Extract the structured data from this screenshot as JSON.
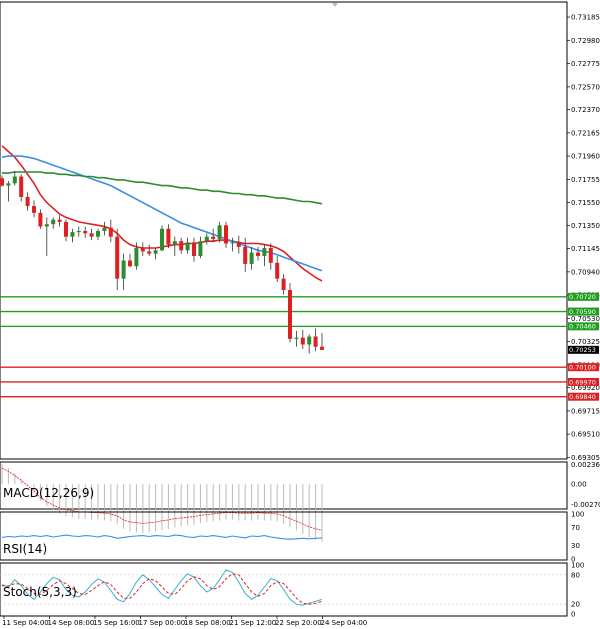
{
  "chart_data": {
    "type": "candlestick",
    "instrument_note": "",
    "price_axis": {
      "min": 0.693,
      "max": 0.733,
      "ticks": [
        "0.73185",
        "0.72980",
        "0.72775",
        "0.72570",
        "0.72370",
        "0.72165",
        "0.71960",
        "0.71755",
        "0.71550",
        "0.71350",
        "0.71145",
        "0.70940",
        "0.70735",
        "0.70530",
        "0.70325",
        "0.70120",
        "0.69920",
        "0.69715",
        "0.69510",
        "0.69305"
      ]
    },
    "time_axis": {
      "labels": [
        "11 Sep 04:00",
        "14 Sep 08:00",
        "15 Sep 16:00",
        "17 Sep 00:00",
        "18 Sep 08:00",
        "21 Sep 12:00",
        "22 Sep 20:00",
        "24 Sep 04:00"
      ]
    },
    "candles": [
      [
        0.71765,
        0.7179,
        0.7169,
        0.717
      ],
      [
        0.717,
        0.7174,
        0.7156,
        0.7172
      ],
      [
        0.7172,
        0.7183,
        0.717,
        0.7178
      ],
      [
        0.7178,
        0.718,
        0.7156,
        0.716
      ],
      [
        0.716,
        0.7164,
        0.7148,
        0.7152
      ],
      [
        0.7152,
        0.7157,
        0.7142,
        0.7146
      ],
      [
        0.7146,
        0.7149,
        0.7132,
        0.7134
      ],
      [
        0.7134,
        0.7142,
        0.7108,
        0.7136
      ],
      [
        0.7136,
        0.7142,
        0.7132,
        0.714
      ],
      [
        0.714,
        0.7144,
        0.7134,
        0.7138
      ],
      [
        0.7138,
        0.714,
        0.7121,
        0.7125
      ],
      [
        0.7125,
        0.7132,
        0.712,
        0.7129
      ],
      [
        0.7129,
        0.7134,
        0.7125,
        0.713
      ],
      [
        0.713,
        0.7134,
        0.7124,
        0.7128
      ],
      [
        0.7128,
        0.7132,
        0.7122,
        0.7125
      ],
      [
        0.7125,
        0.7132,
        0.7122,
        0.713
      ],
      [
        0.713,
        0.7138,
        0.7126,
        0.7133
      ],
      [
        0.7133,
        0.714,
        0.712,
        0.7125
      ],
      [
        0.7125,
        0.7132,
        0.7078,
        0.7088
      ],
      [
        0.7088,
        0.711,
        0.7078,
        0.7104
      ],
      [
        0.7104,
        0.711,
        0.7098,
        0.7099
      ],
      [
        0.7099,
        0.712,
        0.7096,
        0.7115
      ],
      [
        0.7115,
        0.712,
        0.7108,
        0.7112
      ],
      [
        0.7112,
        0.7118,
        0.7108,
        0.711
      ],
      [
        0.711,
        0.7115,
        0.7105,
        0.7113
      ],
      [
        0.7113,
        0.7135,
        0.7112,
        0.7132
      ],
      [
        0.7132,
        0.7136,
        0.7115,
        0.7118
      ],
      [
        0.7118,
        0.7125,
        0.7108,
        0.7121
      ],
      [
        0.7121,
        0.7124,
        0.711,
        0.7113
      ],
      [
        0.7113,
        0.7124,
        0.711,
        0.712
      ],
      [
        0.712,
        0.7124,
        0.7103,
        0.7108
      ],
      [
        0.7108,
        0.7125,
        0.7106,
        0.7121
      ],
      [
        0.7121,
        0.7128,
        0.7118,
        0.7125
      ],
      [
        0.7125,
        0.7132,
        0.712,
        0.7123
      ],
      [
        0.7123,
        0.7138,
        0.712,
        0.7135
      ],
      [
        0.7135,
        0.7138,
        0.7115,
        0.7119
      ],
      [
        0.7119,
        0.7124,
        0.7112,
        0.712
      ],
      [
        0.712,
        0.7126,
        0.711,
        0.7116
      ],
      [
        0.7116,
        0.7124,
        0.7094,
        0.7101
      ],
      [
        0.7101,
        0.7116,
        0.7096,
        0.7111
      ],
      [
        0.7111,
        0.7116,
        0.7104,
        0.7108
      ],
      [
        0.7108,
        0.7118,
        0.7099,
        0.7115
      ],
      [
        0.7115,
        0.7119,
        0.7096,
        0.7102
      ],
      [
        0.7102,
        0.7108,
        0.7085,
        0.7088
      ],
      [
        0.7088,
        0.7092,
        0.7074,
        0.7078
      ],
      [
        0.7078,
        0.7084,
        0.7032,
        0.7035
      ],
      [
        0.7035,
        0.7042,
        0.7028,
        0.7036
      ],
      [
        0.7036,
        0.7043,
        0.7026,
        0.703
      ],
      [
        0.703,
        0.7039,
        0.7022,
        0.7037
      ],
      [
        0.7037,
        0.7044,
        0.7024,
        0.7028
      ],
      [
        0.7028,
        0.704,
        0.7025,
        0.70253
      ]
    ],
    "ma_series": [
      {
        "color": "#e02020",
        "values": [
          0.7205,
          0.72,
          0.7195,
          0.7188,
          0.718,
          0.7172,
          0.7162,
          0.7155,
          0.715,
          0.7145,
          0.7142,
          0.714,
          0.7138,
          0.7137,
          0.7136,
          0.7135,
          0.7134,
          0.7132,
          0.7128,
          0.7122,
          0.7118,
          0.7116,
          0.7115,
          0.7115,
          0.7115,
          0.7116,
          0.7117,
          0.7118,
          0.7118,
          0.7119,
          0.7119,
          0.712,
          0.7121,
          0.7121,
          0.7122,
          0.7122,
          0.7121,
          0.712,
          0.7119,
          0.7119,
          0.7119,
          0.7118,
          0.7117,
          0.7115,
          0.7112,
          0.7107,
          0.7102,
          0.7097,
          0.7093,
          0.7089,
          0.7086
        ]
      },
      {
        "color": "#3a8ee6",
        "values": [
          0.7195,
          0.7196,
          0.7196,
          0.7196,
          0.7195,
          0.7194,
          0.7192,
          0.719,
          0.7188,
          0.7186,
          0.7184,
          0.7182,
          0.718,
          0.7178,
          0.7176,
          0.7174,
          0.7172,
          0.717,
          0.7167,
          0.7164,
          0.7161,
          0.7158,
          0.7155,
          0.7152,
          0.7149,
          0.7146,
          0.7143,
          0.714,
          0.7137,
          0.7135,
          0.7133,
          0.7131,
          0.7129,
          0.7127,
          0.7125,
          0.7123,
          0.7121,
          0.7119,
          0.7117,
          0.7115,
          0.7113,
          0.7112,
          0.7111,
          0.7109,
          0.7107,
          0.7105,
          0.7103,
          0.7101,
          0.7099,
          0.7097,
          0.7095
        ]
      },
      {
        "color": "#2e8b2e",
        "values": [
          0.7181,
          0.7181,
          0.7182,
          0.7182,
          0.7182,
          0.7182,
          0.7182,
          0.7181,
          0.7181,
          0.718,
          0.718,
          0.7179,
          0.7179,
          0.7178,
          0.7178,
          0.7177,
          0.7177,
          0.7176,
          0.7175,
          0.7175,
          0.7174,
          0.7173,
          0.7173,
          0.7172,
          0.7171,
          0.717,
          0.717,
          0.7169,
          0.7168,
          0.7168,
          0.7167,
          0.7166,
          0.7166,
          0.7165,
          0.7165,
          0.7164,
          0.7163,
          0.7163,
          0.7162,
          0.7162,
          0.7161,
          0.7161,
          0.716,
          0.7159,
          0.7159,
          0.7158,
          0.7157,
          0.7156,
          0.7156,
          0.7155,
          0.7154
        ]
      }
    ],
    "levels": [
      {
        "value": 0.7072,
        "label": "0.70720",
        "color": "#1e9e1e"
      },
      {
        "value": 0.7059,
        "label": "0.70590",
        "color": "#1e9e1e"
      },
      {
        "value": 0.7046,
        "label": "0.70460",
        "color": "#1e9e1e"
      },
      {
        "value": 0.701,
        "label": "0.70100",
        "color": "#e02020"
      },
      {
        "value": 0.6997,
        "label": "0.69970",
        "color": "#e02020"
      },
      {
        "value": 0.6984,
        "label": "0.69840",
        "color": "#e02020"
      }
    ],
    "current_price": {
      "value": 0.70253,
      "label": "0.70253"
    },
    "indicators": {
      "macd": {
        "label": "MACD(12,26,9)",
        "ticks": [
          "0.002366",
          "0.00",
          "-0.002708"
        ],
        "min": -0.0027,
        "max": 0.0024
      },
      "rsi": {
        "label": "RSI(14)",
        "ticks": [
          "100",
          "70",
          "30",
          "0"
        ],
        "values": [
          48,
          50,
          49,
          51,
          50,
          52,
          50,
          52,
          49,
          51,
          53,
          51,
          50,
          52,
          51,
          49,
          52,
          50,
          46,
          48,
          50,
          51,
          52,
          50,
          52,
          51,
          50,
          53,
          52,
          49,
          48,
          51,
          50,
          52,
          50,
          48,
          51,
          49,
          47,
          51,
          50,
          52,
          49,
          47,
          45,
          44,
          45,
          46,
          45,
          46,
          47
        ]
      },
      "stoch": {
        "label": "Stoch(5,3,3)",
        "ticks": [
          "100",
          "80",
          "20",
          "0"
        ],
        "k": [
          60,
          55,
          70,
          58,
          40,
          30,
          45,
          62,
          75,
          70,
          50,
          38,
          35,
          45,
          60,
          72,
          65,
          48,
          30,
          25,
          42,
          65,
          80,
          70,
          55,
          40,
          32,
          50,
          68,
          82,
          75,
          58,
          45,
          52,
          70,
          90,
          85,
          65,
          42,
          30,
          38,
          55,
          72,
          68,
          50,
          30,
          20,
          18,
          22,
          26,
          30
        ],
        "d": [
          58,
          57,
          62,
          61,
          52,
          42,
          40,
          48,
          60,
          68,
          62,
          52,
          42,
          40,
          48,
          58,
          66,
          60,
          45,
          32,
          32,
          45,
          62,
          72,
          68,
          55,
          42,
          40,
          52,
          68,
          76,
          72,
          58,
          50,
          56,
          72,
          82,
          80,
          62,
          45,
          36,
          42,
          58,
          66,
          62,
          48,
          32,
          22,
          20,
          22,
          26
        ]
      }
    }
  }
}
